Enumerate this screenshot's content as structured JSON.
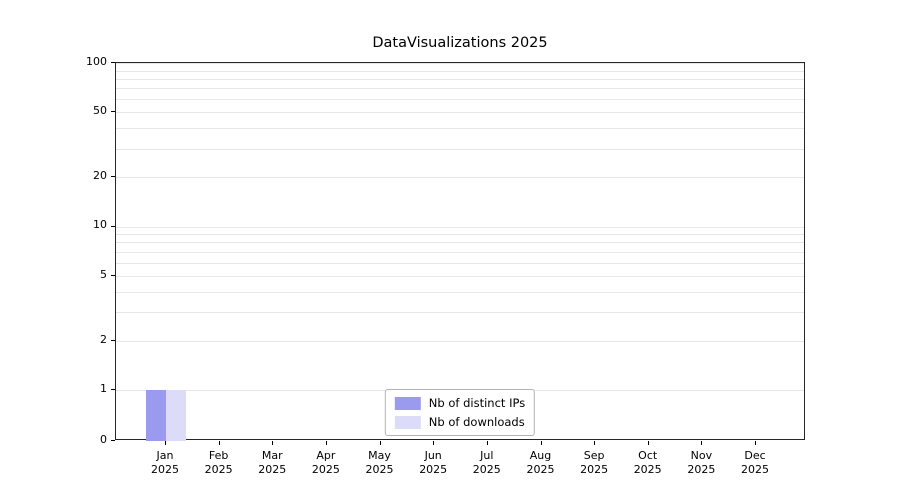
{
  "chart_data": {
    "type": "bar",
    "title": "DataVisualizations 2025",
    "categories": [
      "Jan",
      "Feb",
      "Mar",
      "Apr",
      "May",
      "Jun",
      "Jul",
      "Aug",
      "Sep",
      "Oct",
      "Nov",
      "Dec"
    ],
    "category_year": "2025",
    "series": [
      {
        "name": "Nb of distinct IPs",
        "color": "#9a9aee",
        "values": [
          1,
          0,
          0,
          0,
          0,
          0,
          0,
          0,
          0,
          0,
          0,
          0
        ]
      },
      {
        "name": "Nb of downloads",
        "color": "#dcdcf8",
        "values": [
          1,
          0,
          0,
          0,
          0,
          0,
          0,
          0,
          0,
          0,
          0,
          0
        ]
      }
    ],
    "yscale": "symlog",
    "yticks": [
      0,
      1,
      2,
      5,
      10,
      20,
      50,
      100
    ],
    "ylim": [
      0,
      100
    ],
    "xlabel": "",
    "ylabel": "",
    "grid": true,
    "grid_color": "#e7e7e7",
    "axis_color": "#262626",
    "legend_position": "lower center"
  }
}
